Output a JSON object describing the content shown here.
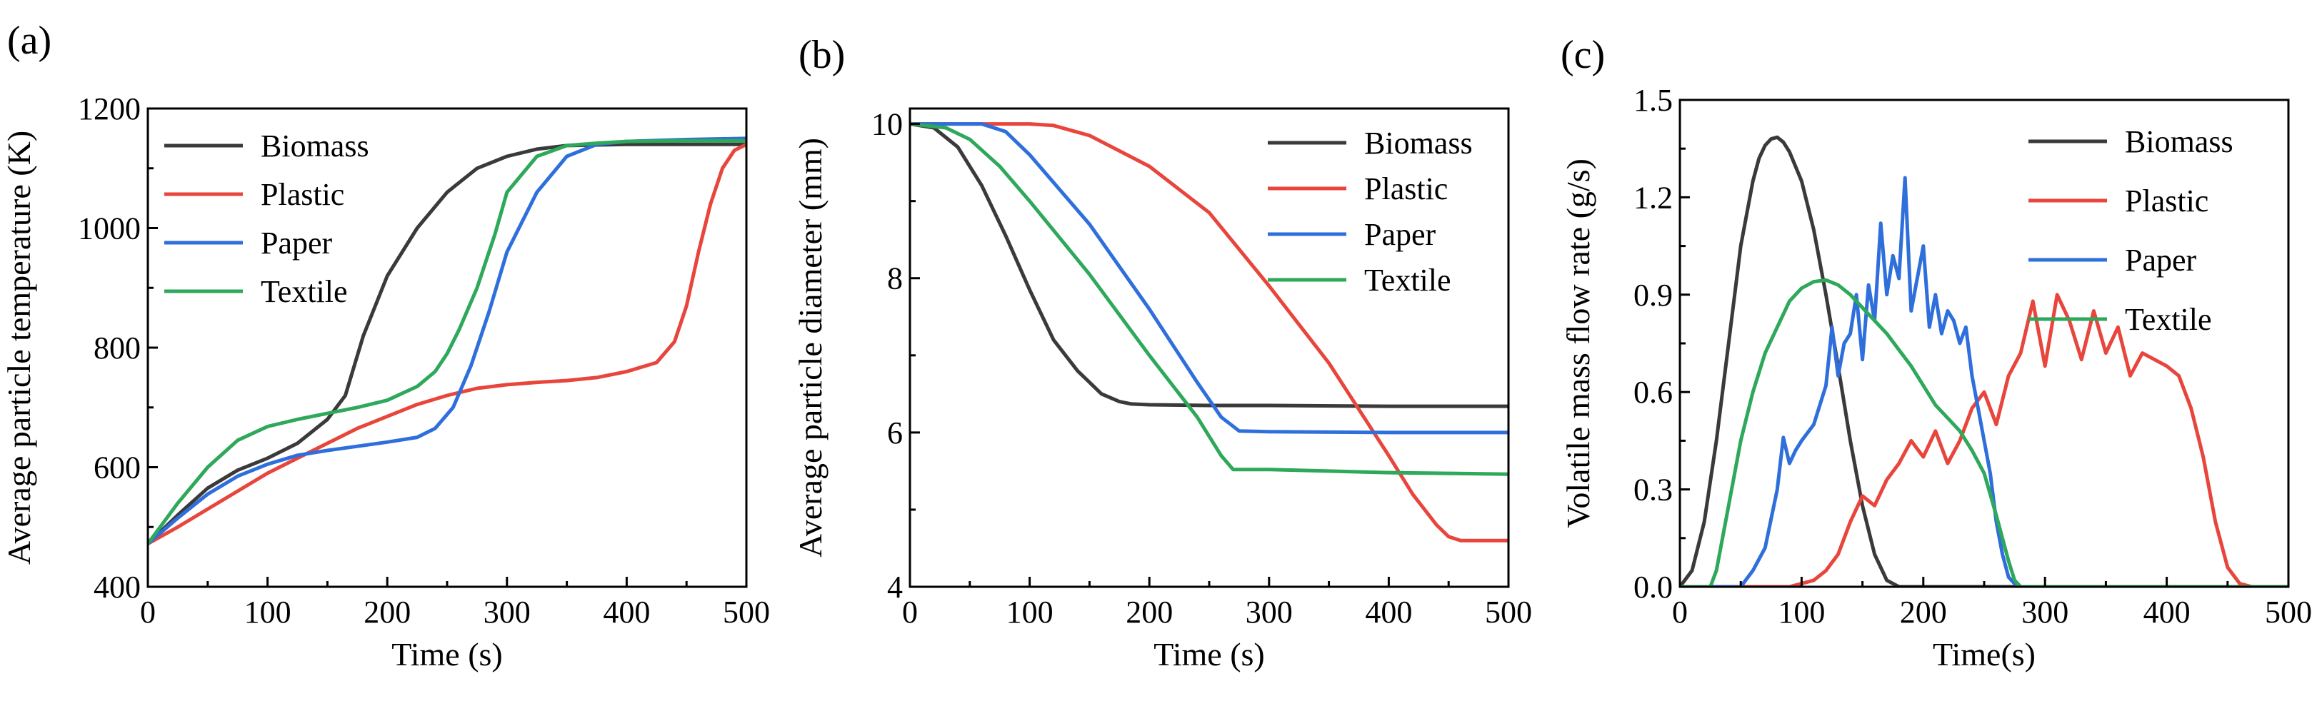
{
  "chart_data": [
    {
      "type": "line",
      "panel_label": "(a)",
      "xlabel": "Time (s)",
      "ylabel": "Average particle temperature (K)",
      "xlim": [
        0,
        500
      ],
      "ylim": [
        400,
        1200
      ],
      "xticks": [
        0,
        100,
        200,
        300,
        400,
        500
      ],
      "xtick_labels": [
        "0",
        "100",
        "200",
        "300",
        "400",
        "500"
      ],
      "yticks": [
        400,
        600,
        800,
        1000,
        1200
      ],
      "ytick_labels": [
        "400",
        "600",
        "800",
        "1000",
        "1200"
      ],
      "legend_position": "top-left",
      "series": [
        {
          "name": "Biomass",
          "color": "#3a3a3a",
          "x": [
            0,
            25,
            50,
            75,
            100,
            125,
            150,
            165,
            180,
            200,
            225,
            250,
            275,
            300,
            325,
            350,
            400,
            450,
            500
          ],
          "y": [
            472,
            520,
            565,
            595,
            615,
            640,
            680,
            720,
            820,
            920,
            1000,
            1060,
            1100,
            1120,
            1132,
            1138,
            1140,
            1140,
            1140
          ]
        },
        {
          "name": "Plastic",
          "color": "#e8453c",
          "x": [
            0,
            25,
            50,
            75,
            100,
            125,
            150,
            175,
            200,
            225,
            250,
            275,
            300,
            325,
            350,
            375,
            400,
            425,
            440,
            450,
            460,
            470,
            480,
            490,
            500
          ],
          "y": [
            472,
            500,
            530,
            560,
            590,
            615,
            640,
            665,
            685,
            705,
            720,
            732,
            738,
            742,
            745,
            750,
            760,
            775,
            810,
            870,
            960,
            1040,
            1100,
            1130,
            1140
          ]
        },
        {
          "name": "Paper",
          "color": "#2f6fdc",
          "x": [
            0,
            25,
            50,
            75,
            100,
            125,
            150,
            175,
            200,
            225,
            240,
            255,
            270,
            285,
            300,
            325,
            350,
            375,
            400,
            450,
            500
          ],
          "y": [
            472,
            515,
            555,
            585,
            605,
            620,
            628,
            635,
            642,
            650,
            665,
            700,
            770,
            860,
            960,
            1060,
            1120,
            1140,
            1145,
            1148,
            1150
          ]
        },
        {
          "name": "Textile",
          "color": "#2ea85a",
          "x": [
            0,
            25,
            50,
            75,
            100,
            125,
            150,
            175,
            200,
            225,
            240,
            250,
            260,
            275,
            290,
            300,
            325,
            350,
            375,
            400,
            450,
            500
          ],
          "y": [
            472,
            540,
            600,
            645,
            668,
            680,
            690,
            700,
            712,
            735,
            760,
            790,
            830,
            900,
            990,
            1060,
            1120,
            1138,
            1142,
            1145,
            1146,
            1146
          ]
        }
      ]
    },
    {
      "type": "line",
      "panel_label": "(b)",
      "xlabel": "Time (s)",
      "ylabel": "Average particle diameter (mm)",
      "xlim": [
        0,
        500
      ],
      "ylim": [
        4,
        10.2
      ],
      "xticks": [
        0,
        100,
        200,
        300,
        400,
        500
      ],
      "xtick_labels": [
        "0",
        "100",
        "200",
        "300",
        "400",
        "500"
      ],
      "yticks": [
        4,
        6,
        8,
        10
      ],
      "ytick_labels": [
        "4",
        "6",
        "8",
        "10"
      ],
      "legend_position": "top-right",
      "series": [
        {
          "name": "Biomass",
          "color": "#3a3a3a",
          "x": [
            0,
            20,
            40,
            60,
            80,
            100,
            120,
            140,
            160,
            175,
            185,
            200,
            250,
            300,
            400,
            500
          ],
          "y": [
            10,
            9.95,
            9.7,
            9.2,
            8.55,
            7.85,
            7.2,
            6.8,
            6.5,
            6.4,
            6.37,
            6.36,
            6.35,
            6.35,
            6.34,
            6.34
          ]
        },
        {
          "name": "Plastic",
          "color": "#e8453c",
          "x": [
            0,
            50,
            100,
            120,
            150,
            200,
            250,
            300,
            350,
            400,
            420,
            440,
            450,
            460,
            500
          ],
          "y": [
            10,
            10,
            10,
            9.98,
            9.85,
            9.45,
            8.85,
            7.9,
            6.9,
            5.7,
            5.2,
            4.8,
            4.65,
            4.6,
            4.6
          ]
        },
        {
          "name": "Paper",
          "color": "#2f6fdc",
          "x": [
            0,
            30,
            60,
            80,
            100,
            150,
            200,
            240,
            260,
            275,
            300,
            400,
            500
          ],
          "y": [
            10,
            10,
            10,
            9.9,
            9.6,
            8.7,
            7.6,
            6.65,
            6.2,
            6.02,
            6.01,
            6.0,
            6.0
          ]
        },
        {
          "name": "Textile",
          "color": "#2ea85a",
          "x": [
            0,
            30,
            50,
            75,
            100,
            150,
            200,
            240,
            260,
            270,
            300,
            350,
            400,
            450,
            500
          ],
          "y": [
            10,
            9.95,
            9.8,
            9.45,
            9.0,
            8.05,
            7.0,
            6.2,
            5.7,
            5.52,
            5.52,
            5.5,
            5.48,
            5.47,
            5.46
          ]
        }
      ]
    },
    {
      "type": "line",
      "panel_label": "(c)",
      "xlabel": "Time(s)",
      "ylabel": "Volatile mass flow rate (g/s)",
      "xlim": [
        0,
        500
      ],
      "ylim": [
        0,
        1.5
      ],
      "xticks": [
        0,
        100,
        200,
        300,
        400,
        500
      ],
      "xtick_labels": [
        "0",
        "100",
        "200",
        "300",
        "400",
        "500"
      ],
      "yticks": [
        0,
        0.3,
        0.6,
        0.9,
        1.2,
        1.5
      ],
      "ytick_labels": [
        "0.0",
        "0.3",
        "0.6",
        "0.9",
        "1.2",
        "1.5"
      ],
      "legend_position": "top-right",
      "series": [
        {
          "name": "Biomass",
          "color": "#3a3a3a",
          "x": [
            0,
            10,
            20,
            30,
            40,
            50,
            60,
            65,
            70,
            75,
            80,
            85,
            90,
            100,
            110,
            120,
            130,
            140,
            150,
            160,
            170,
            180,
            190,
            200,
            300,
            400,
            500
          ],
          "y": [
            0,
            0.05,
            0.2,
            0.45,
            0.75,
            1.05,
            1.25,
            1.32,
            1.36,
            1.38,
            1.385,
            1.37,
            1.34,
            1.25,
            1.1,
            0.9,
            0.68,
            0.45,
            0.25,
            0.1,
            0.02,
            0,
            0,
            0,
            0,
            0,
            0
          ]
        },
        {
          "name": "Plastic",
          "color": "#e8453c",
          "x": [
            0,
            90,
            110,
            120,
            130,
            140,
            150,
            160,
            170,
            180,
            190,
            200,
            210,
            220,
            230,
            240,
            250,
            260,
            270,
            280,
            290,
            300,
            310,
            320,
            330,
            340,
            350,
            360,
            370,
            380,
            390,
            400,
            410,
            420,
            430,
            440,
            450,
            460,
            470,
            500
          ],
          "y": [
            0,
            0,
            0.02,
            0.05,
            0.1,
            0.2,
            0.28,
            0.25,
            0.33,
            0.38,
            0.45,
            0.4,
            0.48,
            0.38,
            0.45,
            0.55,
            0.6,
            0.5,
            0.65,
            0.72,
            0.88,
            0.68,
            0.9,
            0.82,
            0.7,
            0.85,
            0.72,
            0.8,
            0.65,
            0.72,
            0.7,
            0.68,
            0.65,
            0.55,
            0.4,
            0.2,
            0.06,
            0.01,
            0,
            0
          ]
        },
        {
          "name": "Paper",
          "color": "#2f6fdc",
          "x": [
            0,
            50,
            60,
            70,
            80,
            85,
            90,
            95,
            100,
            110,
            120,
            125,
            130,
            135,
            140,
            145,
            150,
            155,
            160,
            165,
            170,
            175,
            180,
            185,
            190,
            195,
            200,
            205,
            210,
            215,
            220,
            225,
            230,
            235,
            240,
            245,
            250,
            255,
            260,
            265,
            270,
            275,
            280,
            290,
            300,
            500
          ],
          "y": [
            0,
            0,
            0.05,
            0.12,
            0.3,
            0.46,
            0.38,
            0.42,
            0.45,
            0.5,
            0.62,
            0.8,
            0.65,
            0.75,
            0.78,
            0.9,
            0.7,
            0.93,
            0.82,
            1.12,
            0.9,
            1.02,
            0.95,
            1.26,
            0.85,
            0.95,
            1.05,
            0.8,
            0.9,
            0.78,
            0.85,
            0.82,
            0.75,
            0.8,
            0.65,
            0.55,
            0.45,
            0.35,
            0.2,
            0.1,
            0.03,
            0.01,
            0,
            0,
            0,
            0
          ]
        },
        {
          "name": "Textile",
          "color": "#2ea85a",
          "x": [
            0,
            25,
            30,
            40,
            50,
            60,
            70,
            80,
            90,
            100,
            110,
            120,
            130,
            140,
            150,
            160,
            170,
            180,
            190,
            200,
            210,
            220,
            230,
            240,
            250,
            260,
            270,
            275,
            280,
            500
          ],
          "y": [
            0,
            0,
            0.05,
            0.25,
            0.45,
            0.6,
            0.72,
            0.8,
            0.88,
            0.92,
            0.94,
            0.945,
            0.93,
            0.9,
            0.86,
            0.82,
            0.78,
            0.73,
            0.68,
            0.62,
            0.56,
            0.52,
            0.48,
            0.42,
            0.35,
            0.22,
            0.08,
            0.02,
            0,
            0
          ]
        }
      ]
    }
  ]
}
